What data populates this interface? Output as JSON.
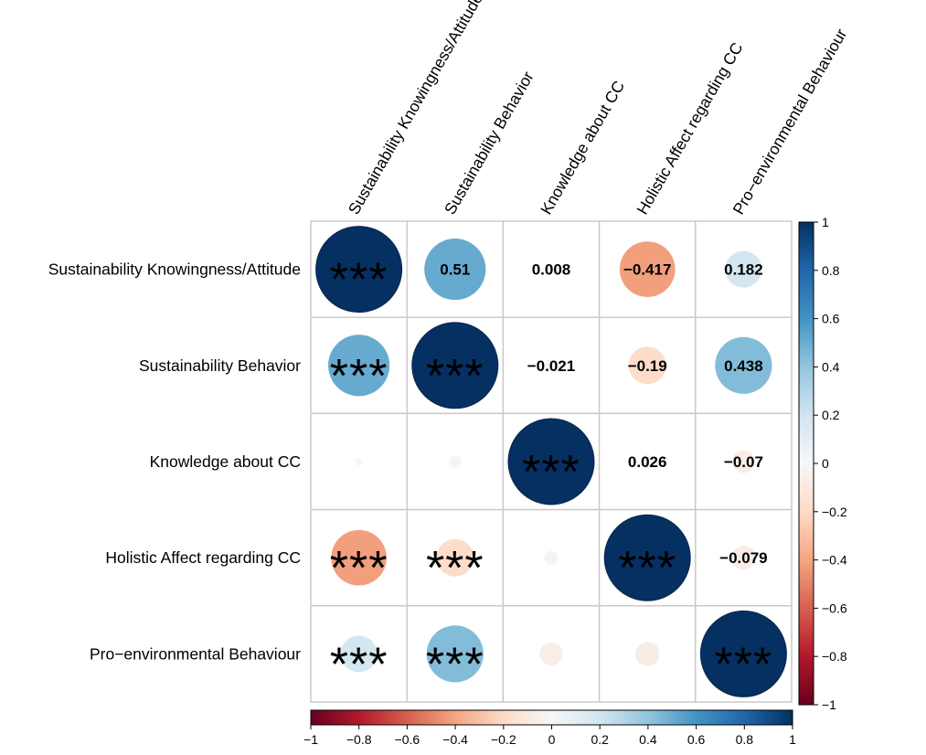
{
  "chart_data": {
    "type": "heatmap",
    "style": "correlation-circle-matrix",
    "variables": [
      "Sustainability Knowingness/Attitude",
      "Sustainability Behavior",
      "Knowledge about CC",
      "Holistic Affect regarding CC",
      "Pro−environmental Behaviour"
    ],
    "matrix": [
      [
        1,
        0.51,
        0.008,
        -0.417,
        0.182
      ],
      [
        0.51,
        1,
        -0.021,
        -0.19,
        0.438
      ],
      [
        0.008,
        -0.021,
        1,
        0.026,
        -0.07
      ],
      [
        -0.417,
        -0.19,
        0.026,
        1,
        -0.079
      ],
      [
        0.182,
        0.438,
        -0.07,
        -0.079,
        1
      ]
    ],
    "upper_labels": [
      [
        null,
        "0.51",
        "0.008",
        "−0.417",
        "0.182"
      ],
      [
        null,
        null,
        "−0.021",
        "−0.19",
        "0.438"
      ],
      [
        null,
        null,
        null,
        "0.026",
        "−0.07"
      ],
      [
        null,
        null,
        null,
        null,
        "−0.079"
      ],
      [
        null,
        null,
        null,
        null,
        null
      ]
    ],
    "significance": [
      [
        "***",
        null,
        null,
        null,
        null
      ],
      [
        "***",
        "***",
        null,
        null,
        null
      ],
      [
        "",
        "",
        "***",
        null,
        null
      ],
      [
        "***",
        "***",
        "",
        "***",
        null
      ],
      [
        "***",
        "***",
        "",
        "",
        "***"
      ]
    ],
    "colorbar": {
      "range": [
        -1,
        1
      ],
      "ticks": [
        "−1",
        "−0.8",
        "−0.6",
        "−0.4",
        "−0.2",
        "0",
        "0.2",
        "0.4",
        "0.6",
        "0.8",
        "1"
      ],
      "low_color": "#67001F",
      "mid_color": "#F7F7F7",
      "high_color": "#053061"
    },
    "grid": true,
    "legend": "right and bottom colorbars"
  }
}
